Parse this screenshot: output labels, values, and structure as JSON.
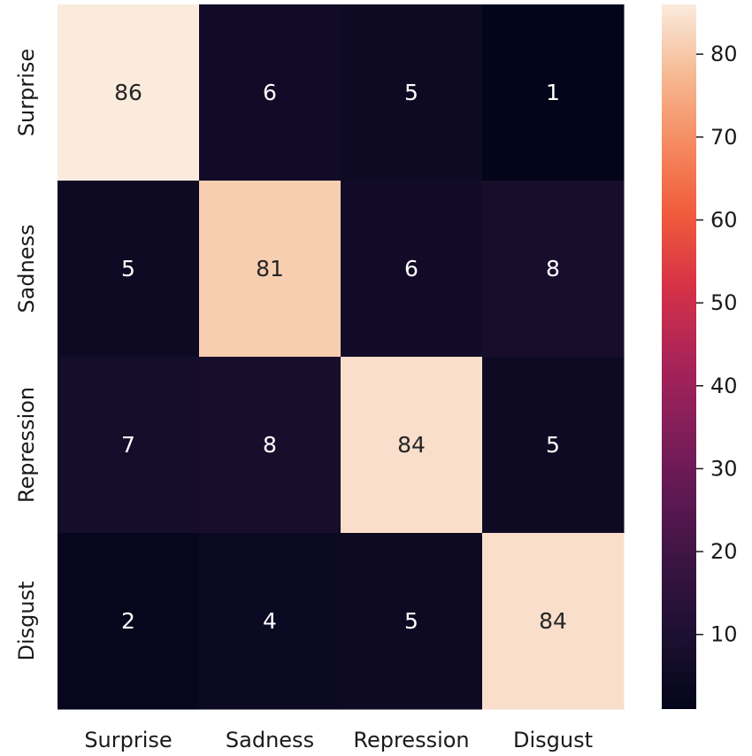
{
  "chart_data": {
    "type": "heatmap",
    "x_categories": [
      "Surprise",
      "Sadness",
      "Repression",
      "Disgust"
    ],
    "y_categories": [
      "Surprise",
      "Sadness",
      "Repression",
      "Disgust"
    ],
    "values": [
      [
        86,
        6,
        5,
        1
      ],
      [
        5,
        81,
        6,
        8
      ],
      [
        7,
        8,
        84,
        5
      ],
      [
        2,
        4,
        5,
        84
      ]
    ],
    "colorbar": {
      "ticks": [
        10,
        20,
        30,
        40,
        50,
        60,
        70,
        80
      ],
      "range": [
        1,
        86
      ],
      "colormap": "rocket"
    },
    "annotation_colors": {
      "on_dark": "#ffffff",
      "on_light": "#262626"
    },
    "xlabel": "",
    "ylabel": "",
    "title": ""
  }
}
